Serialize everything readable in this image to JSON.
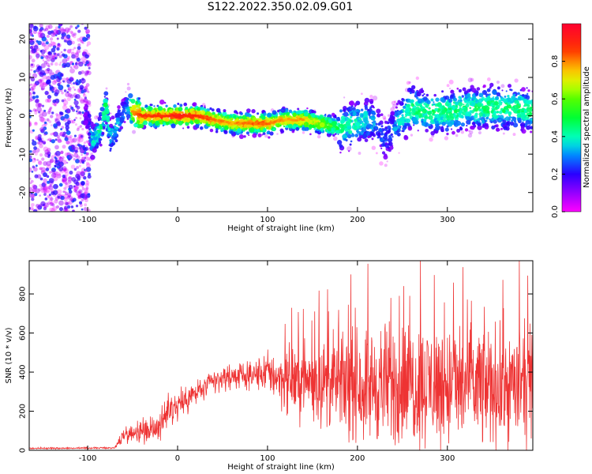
{
  "title": "S122.2022.350.02.09.G01",
  "chart_data": [
    {
      "type": "heatmap",
      "title": "S122.2022.350.02.09.G01",
      "xlabel": "Height of straight line (km)",
      "ylabel": "Frequency (Hz)",
      "xlim": [
        -165,
        395
      ],
      "ylim": [
        -25,
        24
      ],
      "xticks": [
        -100,
        0,
        100,
        200,
        300
      ],
      "yticks": [
        -20,
        -10,
        0,
        10,
        20
      ],
      "colorbar": {
        "label": "Normalized spectral amplitude",
        "range": [
          0,
          1
        ],
        "ticks": [
          0.0,
          0.2,
          0.4,
          0.6,
          0.8
        ],
        "tick_labels": [
          "0.0",
          "0.2",
          "0.4",
          "0.6",
          "0.8"
        ],
        "colormap": "gist_rainbow_r"
      },
      "ridge": {
        "x": [
          -165,
          -100,
          -95,
          -85,
          -80,
          -75,
          -70,
          -65,
          -60,
          -55,
          -50,
          -40,
          -20,
          0,
          20,
          40,
          60,
          80,
          100,
          120,
          140,
          160,
          180,
          200,
          210,
          220,
          225,
          230,
          235,
          240,
          250,
          260,
          280,
          300,
          320,
          340,
          360,
          380,
          395
        ],
        "y": [
          0,
          0,
          -7,
          -3,
          3,
          -6,
          -4,
          -2,
          1,
          3,
          1,
          0,
          0,
          0,
          0,
          -1,
          -2,
          -2,
          -2,
          -1,
          -1,
          -2,
          -3,
          -2,
          -1,
          -2,
          -4,
          -6,
          -5,
          -3,
          0,
          2,
          1,
          1,
          2,
          2,
          2,
          2,
          1
        ],
        "amplitude": [
          0.2,
          0.2,
          0.4,
          0.5,
          0.5,
          0.4,
          0.4,
          0.4,
          0.3,
          0.4,
          0.8,
          0.9,
          0.9,
          0.95,
          0.9,
          0.85,
          0.8,
          0.85,
          0.85,
          0.8,
          0.8,
          0.7,
          0.5,
          0.45,
          0.4,
          0.35,
          0.3,
          0.3,
          0.3,
          0.35,
          0.45,
          0.5,
          0.5,
          0.5,
          0.5,
          0.5,
          0.5,
          0.5,
          0.5
        ]
      },
      "noise_region_x": [
        -165,
        -98
      ]
    },
    {
      "type": "line",
      "xlabel": "Height of straight line (km)",
      "ylabel": "SNR (10 * v/v)",
      "xlim": [
        -165,
        395
      ],
      "ylim": [
        0,
        970
      ],
      "xticks": [
        -100,
        0,
        100,
        200,
        300
      ],
      "yticks": [
        0,
        200,
        400,
        600,
        800
      ],
      "series": [
        {
          "name": "SNR",
          "color": "#ee3333",
          "envelope_x": [
            -165,
            -70,
            -60,
            -40,
            -20,
            -10,
            0,
            20,
            40,
            60,
            80,
            100,
            120,
            140,
            160,
            180,
            200,
            220,
            240,
            260,
            280,
            300,
            320,
            340,
            360,
            380,
            395
          ],
          "mean": [
            10,
            12,
            80,
            100,
            120,
            200,
            230,
            290,
            350,
            380,
            380,
            400,
            360,
            360,
            350,
            340,
            330,
            340,
            330,
            340,
            340,
            330,
            330,
            330,
            330,
            330,
            330
          ],
          "spread": [
            4,
            4,
            40,
            60,
            80,
            80,
            80,
            70,
            60,
            60,
            60,
            100,
            150,
            180,
            200,
            230,
            250,
            280,
            300,
            300,
            300,
            300,
            300,
            300,
            280,
            280,
            260
          ]
        }
      ]
    }
  ]
}
